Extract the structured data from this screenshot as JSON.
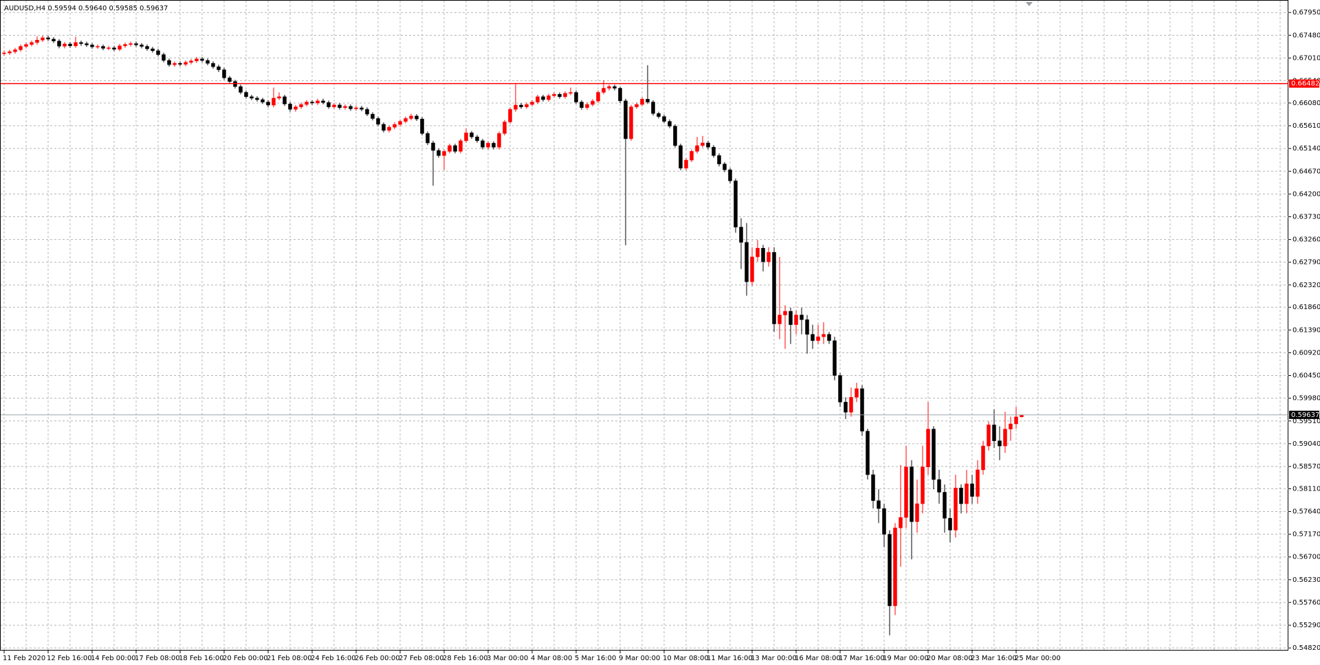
{
  "chart_data": {
    "type": "candlestick",
    "title": "AUDUSD,H4  0.59594 0.59640 0.59585 0.59637",
    "up_color": "#ff0000",
    "down_color": "#000000",
    "grid": true,
    "grid_color": "#b4b4b4",
    "ylim": [
      0.5478,
      0.6818
    ],
    "yticks": [
      {
        "value": 0.6795,
        "label": "0.67950"
      },
      {
        "value": 0.6748,
        "label": "0.67480"
      },
      {
        "value": 0.6701,
        "label": "0.67010"
      },
      {
        "value": 0.6654,
        "label": "0.66540"
      },
      {
        "value": 0.6608,
        "label": "0.66080"
      },
      {
        "value": 0.6561,
        "label": "0.65610"
      },
      {
        "value": 0.6514,
        "label": "0.65140"
      },
      {
        "value": 0.6467,
        "label": "0.64670"
      },
      {
        "value": 0.642,
        "label": "0.64200"
      },
      {
        "value": 0.6373,
        "label": "0.63730"
      },
      {
        "value": 0.6326,
        "label": "0.63260"
      },
      {
        "value": 0.6279,
        "label": "0.62790"
      },
      {
        "value": 0.6232,
        "label": "0.62320"
      },
      {
        "value": 0.6186,
        "label": "0.61860"
      },
      {
        "value": 0.6139,
        "label": "0.61390"
      },
      {
        "value": 0.6092,
        "label": "0.60920"
      },
      {
        "value": 0.6045,
        "label": "0.60450"
      },
      {
        "value": 0.5998,
        "label": "0.59980"
      },
      {
        "value": 0.5951,
        "label": "0.59510"
      },
      {
        "value": 0.5904,
        "label": "0.59040"
      },
      {
        "value": 0.5857,
        "label": "0.58570"
      },
      {
        "value": 0.5811,
        "label": "0.58110"
      },
      {
        "value": 0.5764,
        "label": "0.57640"
      },
      {
        "value": 0.5717,
        "label": "0.57170"
      },
      {
        "value": 0.567,
        "label": "0.56700"
      },
      {
        "value": 0.5623,
        "label": "0.56230"
      },
      {
        "value": 0.5576,
        "label": "0.55760"
      },
      {
        "value": 0.5529,
        "label": "0.55290"
      },
      {
        "value": 0.5482,
        "label": "0.54820"
      }
    ],
    "levels": [
      {
        "value": 0.66482,
        "color": "#ff0000"
      },
      {
        "value": 0.59637,
        "color": "#9aa0a8"
      }
    ],
    "x": [
      "11 Feb 2020",
      null,
      null,
      null,
      null,
      null,
      null,
      null,
      "12 Feb 16:00",
      null,
      null,
      null,
      null,
      null,
      null,
      null,
      "14 Feb 00:00",
      null,
      null,
      null,
      null,
      null,
      null,
      null,
      "17 Feb 08:00",
      null,
      null,
      null,
      null,
      null,
      null,
      null,
      "18 Feb 16:00",
      null,
      null,
      null,
      null,
      null,
      null,
      null,
      "20 Feb 00:00",
      null,
      null,
      null,
      null,
      null,
      null,
      null,
      "21 Feb 08:00",
      null,
      null,
      null,
      null,
      null,
      null,
      null,
      "24 Feb 16:00",
      null,
      null,
      null,
      null,
      null,
      null,
      null,
      "26 Feb 00:00",
      null,
      null,
      null,
      null,
      null,
      null,
      null,
      "27 Feb 08:00",
      null,
      null,
      null,
      null,
      null,
      null,
      null,
      "28 Feb 16:00",
      null,
      null,
      null,
      null,
      null,
      null,
      null,
      "3 Mar 00:00",
      null,
      null,
      null,
      null,
      null,
      null,
      null,
      "4 Mar 08:00",
      null,
      null,
      null,
      null,
      null,
      null,
      null,
      "5 Mar 16:00",
      null,
      null,
      null,
      null,
      null,
      null,
      null,
      "9 Mar 00:00",
      null,
      null,
      null,
      null,
      null,
      null,
      null,
      "10 Mar 08:00",
      null,
      null,
      null,
      null,
      null,
      null,
      null,
      "11 Mar 16:00",
      null,
      null,
      null,
      null,
      null,
      null,
      null,
      "13 Mar 00:00",
      null,
      null,
      null,
      null,
      null,
      null,
      null,
      "16 Mar 08:00",
      null,
      null,
      null,
      null,
      null,
      null,
      null,
      "17 Mar 16:00",
      null,
      null,
      null,
      null,
      null,
      null,
      null,
      "19 Mar 00:00",
      null,
      null,
      null,
      null,
      null,
      null,
      null,
      "20 Mar 08:00",
      null,
      null,
      null,
      null,
      null,
      null,
      null,
      "23 Mar 16:00",
      null,
      null,
      null,
      null,
      null,
      null,
      null,
      "25 Mar 00:00",
      null
    ],
    "open": [
      0.671,
      0.67115,
      0.6714,
      0.6718,
      0.6725,
      0.67289,
      0.6733,
      0.6738,
      0.67428,
      0.674,
      0.6736,
      0.67254,
      0.673,
      0.6726,
      0.6733,
      0.67307,
      0.6728,
      0.6724,
      0.6725,
      0.6721,
      0.6722,
      0.6719,
      0.6726,
      0.6729,
      0.67307,
      0.6728,
      0.6725,
      0.672,
      0.6716,
      0.6708,
      0.6696,
      0.66872,
      0.669,
      0.6688,
      0.6692,
      0.6695,
      0.6699,
      0.66959,
      0.669,
      0.6683,
      0.66767,
      0.666,
      0.66524,
      0.6642,
      0.663,
      0.66211,
      0.6618,
      0.6615,
      0.661,
      0.66037,
      0.6618,
      0.66211,
      0.6606,
      0.6595,
      0.66,
      0.6605,
      0.661,
      0.6608,
      0.66124,
      0.6609,
      0.66,
      0.6604,
      0.65985,
      0.6601,
      0.6596,
      0.6598,
      0.6595,
      0.6585,
      0.6576,
      0.6564,
      0.65515,
      0.6558,
      0.65637,
      0.657,
      0.6576,
      0.65811,
      0.6575,
      0.6545,
      0.65255,
      0.651,
      0.64994,
      0.6508,
      0.652,
      0.65081,
      0.653,
      0.65463,
      0.6538,
      0.653,
      0.65168,
      0.6525,
      0.65168,
      0.6545,
      0.65689,
      0.6595,
      0.66037,
      0.66,
      0.6605,
      0.661,
      0.66211,
      0.6615,
      0.6623,
      0.6626,
      0.66211,
      0.6628,
      0.66298,
      0.661,
      0.65985,
      0.6605,
      0.6612,
      0.663,
      0.66385,
      0.6642,
      0.66385,
      0.66124,
      0.65342,
      0.66,
      0.6605,
      0.66159,
      0.661,
      0.65863,
      0.658,
      0.657,
      0.65602,
      0.652,
      0.64733,
      0.649,
      0.65081,
      0.652,
      0.65255,
      0.65168,
      0.64994,
      0.6482,
      0.647,
      0.64472,
      0.63516,
      0.632,
      0.62386,
      0.629,
      0.63081,
      0.628,
      0.62994,
      0.61516,
      0.617,
      0.61777,
      0.615,
      0.617,
      0.61603,
      0.613,
      0.61169,
      0.6125,
      0.613,
      0.61169,
      0.6045,
      0.599,
      0.59691,
      0.6,
      0.60178,
      0.593,
      0.584,
      0.57863,
      0.577,
      0.57168,
      0.5569,
      0.573,
      0.57516,
      0.5856,
      0.57429,
      0.578,
      0.5856,
      0.59342,
      0.583,
      0.58038,
      0.575,
      0.57255,
      0.58125,
      0.578,
      0.58212,
      0.57951,
      0.585,
      0.58994,
      0.59429,
      0.591,
      0.58994,
      0.59342,
      0.5945,
      0.59594
    ],
    "high": [
      0.6716,
      0.6718,
      0.6722,
      0.6729,
      0.6733,
      0.6737,
      0.6746,
      0.6747,
      0.6747,
      0.6744,
      0.674,
      0.6734,
      0.6734,
      0.6745,
      0.6737,
      0.6735,
      0.6732,
      0.6729,
      0.6729,
      0.6726,
      0.6726,
      0.673,
      0.6733,
      0.6735,
      0.6735,
      0.6732,
      0.6729,
      0.6724,
      0.672,
      0.6712,
      0.67,
      0.6694,
      0.6694,
      0.6696,
      0.6699,
      0.6703,
      0.6703,
      0.67,
      0.6694,
      0.6687,
      0.6681,
      0.6664,
      0.6656,
      0.6646,
      0.6634,
      0.6625,
      0.6622,
      0.6619,
      0.6614,
      0.664,
      0.663,
      0.6625,
      0.661,
      0.6604,
      0.6609,
      0.6614,
      0.6614,
      0.6617,
      0.6617,
      0.6613,
      0.6608,
      0.6608,
      0.6605,
      0.6605,
      0.6602,
      0.6602,
      0.6599,
      0.6589,
      0.658,
      0.6568,
      0.6562,
      0.6568,
      0.6574,
      0.658,
      0.6586,
      0.6585,
      0.6579,
      0.6549,
      0.653,
      0.6514,
      0.6512,
      0.6524,
      0.6524,
      0.6534,
      0.6556,
      0.655,
      0.6542,
      0.6534,
      0.6529,
      0.6529,
      0.6549,
      0.6573,
      0.6599,
      0.6647,
      0.6608,
      0.6609,
      0.6614,
      0.6625,
      0.6625,
      0.6627,
      0.663,
      0.663,
      0.6632,
      0.664,
      0.6634,
      0.6614,
      0.6609,
      0.6616,
      0.6634,
      0.6655,
      0.6646,
      0.6646,
      0.6642,
      0.6617,
      0.6604,
      0.6609,
      0.662,
      0.6686,
      0.6614,
      0.659,
      0.6584,
      0.6574,
      0.6564,
      0.6524,
      0.6494,
      0.6512,
      0.6538,
      0.654,
      0.653,
      0.6521,
      0.6504,
      0.6486,
      0.6474,
      0.6452,
      0.637,
      0.636,
      0.631,
      0.6325,
      0.6315,
      0.631,
      0.631,
      0.629,
      0.619,
      0.6185,
      0.618,
      0.6185,
      0.617,
      0.615,
      0.615,
      0.6155,
      0.6135,
      0.6125,
      0.605,
      0.6,
      0.602,
      0.603,
      0.6025,
      0.5935,
      0.585,
      0.581,
      0.578,
      0.5725,
      0.574,
      0.586,
      0.59,
      0.587,
      0.583,
      0.59,
      0.599,
      0.594,
      0.585,
      0.582,
      0.577,
      0.584,
      0.582,
      0.585,
      0.584,
      0.587,
      0.591,
      0.595,
      0.5975,
      0.594,
      0.597,
      0.596,
      0.598,
      0.5964
    ],
    "low": [
      0.6706,
      0.67075,
      0.671,
      0.6714,
      0.6721,
      0.6725,
      0.6729,
      0.6734,
      0.6736,
      0.6732,
      0.6721,
      0.6721,
      0.6722,
      0.6722,
      0.6726,
      0.6724,
      0.672,
      0.672,
      0.6717,
      0.6717,
      0.6715,
      0.6715,
      0.6722,
      0.6725,
      0.6724,
      0.6721,
      0.6716,
      0.6712,
      0.6704,
      0.6692,
      0.6683,
      0.6683,
      0.6684,
      0.6684,
      0.6688,
      0.6691,
      0.6692,
      0.6686,
      0.6679,
      0.6672,
      0.6656,
      0.6648,
      0.6638,
      0.6626,
      0.6617,
      0.6614,
      0.6611,
      0.6606,
      0.6599,
      0.6599,
      0.6614,
      0.6602,
      0.659,
      0.659,
      0.6596,
      0.6601,
      0.6604,
      0.6604,
      0.6605,
      0.6596,
      0.6596,
      0.6594,
      0.6594,
      0.6592,
      0.6592,
      0.6591,
      0.6581,
      0.6572,
      0.656,
      0.6547,
      0.6547,
      0.6554,
      0.6559,
      0.6566,
      0.6572,
      0.6571,
      0.6541,
      0.6521,
      0.6437,
      0.6495,
      0.647,
      0.6504,
      0.6504,
      0.6504,
      0.6526,
      0.6534,
      0.6526,
      0.6512,
      0.6512,
      0.6512,
      0.6512,
      0.6541,
      0.6565,
      0.659,
      0.6596,
      0.6596,
      0.6601,
      0.6606,
      0.6611,
      0.6611,
      0.6619,
      0.6617,
      0.6617,
      0.6624,
      0.6606,
      0.6594,
      0.6594,
      0.6601,
      0.6608,
      0.6626,
      0.6634,
      0.6634,
      0.6608,
      0.6314,
      0.653,
      0.6596,
      0.6601,
      0.6606,
      0.6582,
      0.6576,
      0.6566,
      0.6556,
      0.6516,
      0.6469,
      0.6469,
      0.6486,
      0.6504,
      0.6516,
      0.6512,
      0.6495,
      0.6477,
      0.6465,
      0.6442,
      0.634,
      0.6265,
      0.621,
      0.623,
      0.628,
      0.626,
      0.627,
      0.6135,
      0.612,
      0.61,
      0.611,
      0.613,
      0.613,
      0.609,
      0.61,
      0.611,
      0.611,
      0.611,
      0.6035,
      0.598,
      0.5955,
      0.596,
      0.599,
      0.592,
      0.583,
      0.577,
      0.574,
      0.569,
      0.55081,
      0.555,
      0.565,
      0.573,
      0.5665,
      0.572,
      0.576,
      0.584,
      0.581,
      0.578,
      0.572,
      0.57,
      0.571,
      0.576,
      0.576,
      0.578,
      0.578,
      0.584,
      0.589,
      0.5895,
      0.587,
      0.5885,
      0.591,
      0.5935,
      0.59585
    ],
    "close": [
      0.67115,
      0.6714,
      0.6718,
      0.6725,
      0.67289,
      0.6733,
      0.6738,
      0.67428,
      0.674,
      0.6736,
      0.67254,
      0.673,
      0.6726,
      0.6733,
      0.67307,
      0.6728,
      0.6724,
      0.6725,
      0.6721,
      0.6722,
      0.6719,
      0.6726,
      0.6729,
      0.67307,
      0.6728,
      0.6725,
      0.672,
      0.6716,
      0.6708,
      0.6696,
      0.66872,
      0.669,
      0.6688,
      0.6692,
      0.6695,
      0.6699,
      0.66959,
      0.669,
      0.6683,
      0.66767,
      0.666,
      0.66524,
      0.6642,
      0.663,
      0.66211,
      0.6618,
      0.6615,
      0.661,
      0.66037,
      0.6618,
      0.66211,
      0.6606,
      0.6595,
      0.66,
      0.6605,
      0.661,
      0.6608,
      0.66124,
      0.6609,
      0.66,
      0.6604,
      0.65985,
      0.6601,
      0.6596,
      0.6598,
      0.6595,
      0.6585,
      0.6576,
      0.6564,
      0.65515,
      0.6558,
      0.65637,
      0.657,
      0.6576,
      0.65811,
      0.6575,
      0.6545,
      0.65255,
      0.651,
      0.64994,
      0.6508,
      0.652,
      0.65081,
      0.653,
      0.65463,
      0.6538,
      0.653,
      0.65168,
      0.6525,
      0.65168,
      0.6545,
      0.65689,
      0.6595,
      0.66037,
      0.66,
      0.6605,
      0.661,
      0.66211,
      0.6615,
      0.6623,
      0.6626,
      0.66211,
      0.6628,
      0.66298,
      0.661,
      0.65985,
      0.6605,
      0.6612,
      0.663,
      0.66385,
      0.6642,
      0.66385,
      0.66124,
      0.65342,
      0.66,
      0.6605,
      0.66159,
      0.661,
      0.65863,
      0.658,
      0.657,
      0.65602,
      0.652,
      0.64733,
      0.649,
      0.65081,
      0.652,
      0.65255,
      0.65168,
      0.64994,
      0.6482,
      0.647,
      0.64472,
      0.63516,
      0.632,
      0.62386,
      0.629,
      0.63081,
      0.628,
      0.62994,
      0.61516,
      0.617,
      0.61777,
      0.615,
      0.617,
      0.61603,
      0.613,
      0.61169,
      0.6125,
      0.613,
      0.61169,
      0.6045,
      0.599,
      0.59691,
      0.6,
      0.60178,
      0.593,
      0.584,
      0.57863,
      0.577,
      0.57168,
      0.5569,
      0.573,
      0.57516,
      0.5856,
      0.57429,
      0.578,
      0.5856,
      0.59342,
      0.583,
      0.58038,
      0.575,
      0.57255,
      0.58125,
      0.578,
      0.58212,
      0.57951,
      0.585,
      0.58994,
      0.59429,
      0.591,
      0.58994,
      0.59342,
      0.5945,
      0.59594,
      0.59637
    ]
  }
}
